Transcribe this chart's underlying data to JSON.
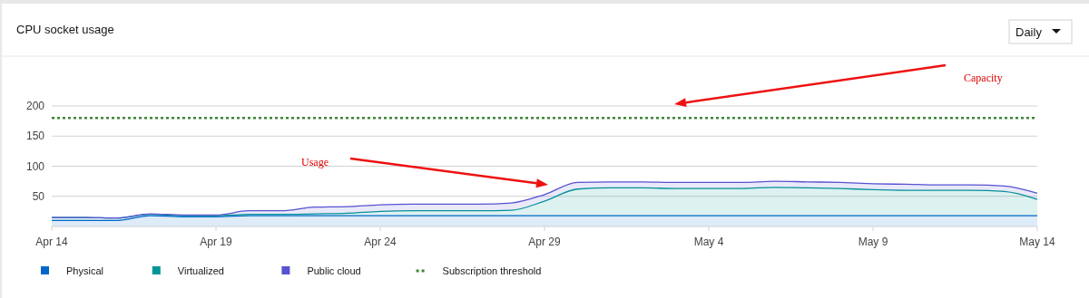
{
  "chart_data": {
    "type": "area",
    "title": "CPU socket usage",
    "stacked": true,
    "x": [
      "--04-14",
      "--04-15",
      "--04-16",
      "--04-17",
      "--04-18",
      "--04-19",
      "--04-20",
      "--04-21",
      "--04-22",
      "--04-23",
      "--04-24",
      "--04-25",
      "--04-26",
      "--04-27",
      "--04-28",
      "--04-29",
      "--04-30",
      "--05-01",
      "--05-02",
      "--05-03",
      "--05-04",
      "--05-05",
      "--05-06",
      "--05-07",
      "--05-08",
      "--05-09",
      "--05-10",
      "--05-11",
      "--05-12",
      "--05-13",
      "--05-14"
    ],
    "series": [
      {
        "name": "Physical",
        "color": "#0066cc",
        "values": [
          10,
          10,
          10,
          18,
          16,
          16,
          18,
          18,
          18,
          18,
          18,
          18,
          18,
          18,
          18,
          18,
          18,
          18,
          18,
          18,
          18,
          18,
          18,
          18,
          18,
          18,
          18,
          18,
          18,
          18,
          18
        ]
      },
      {
        "name": "Virtualized",
        "color": "#009596",
        "values": [
          5,
          5,
          4,
          2,
          2,
          2,
          2,
          2,
          3,
          4,
          7,
          8,
          8,
          8,
          9,
          24,
          44,
          46,
          46,
          45,
          45,
          45,
          47,
          46,
          45,
          43,
          42,
          42,
          42,
          40,
          27
        ]
      },
      {
        "name": "Public cloud",
        "color": "#5752d1",
        "values": [
          0,
          0,
          0,
          1,
          1,
          1,
          6,
          6,
          11,
          11,
          11,
          11,
          11,
          11,
          12,
          11,
          11,
          10,
          10,
          10,
          10,
          10,
          10,
          10,
          10,
          10,
          10,
          9,
          9,
          9,
          10
        ]
      }
    ],
    "ylim": [
      0,
      200
    ],
    "yticks": [
      50,
      100,
      150,
      200
    ],
    "xlim": [
      "--04-14",
      "--05-14"
    ],
    "xticks": [
      {
        "value": "--04-14",
        "label": "Apr 14"
      },
      {
        "value": "--04-19",
        "label": "Apr 19"
      },
      {
        "value": "--04-24",
        "label": "Apr 24"
      },
      {
        "value": "--04-29",
        "label": "Apr 29"
      },
      {
        "value": "--05-04",
        "label": "May 4"
      },
      {
        "value": "--05-09",
        "label": "May 9"
      },
      {
        "value": "--05-14",
        "label": "May 14"
      }
    ],
    "ref_lines": [
      {
        "axis": "y",
        "value": 180,
        "label": "Subscription threshold",
        "color": "#3e8635",
        "line_style": "dotted"
      }
    ],
    "annotations": [
      "Usage",
      "Capacity",
      "Daily"
    ],
    "grid": "y",
    "legend": "bottom left"
  }
}
